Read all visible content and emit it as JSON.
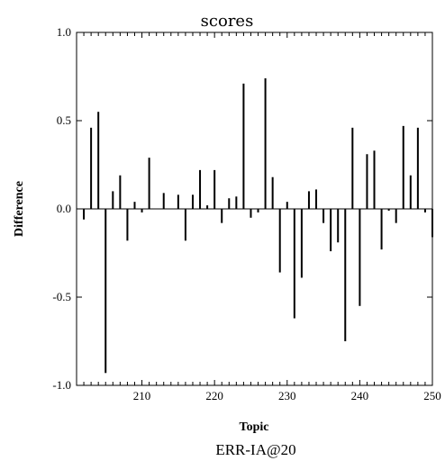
{
  "chart_data": {
    "type": "bar",
    "title": "scores",
    "xlabel": "Topic",
    "ylabel": "Difference",
    "caption": "ERR-IA@20",
    "xlim": [
      201,
      250
    ],
    "ylim": [
      -1.0,
      1.0
    ],
    "x_ticks": [
      210,
      220,
      230,
      240,
      250
    ],
    "y_ticks": [
      -1.0,
      -0.5,
      0.0,
      0.5,
      1.0
    ],
    "y_tick_labels": [
      "-1.0",
      "-0.5",
      "0.0",
      "0.5",
      "1.0"
    ],
    "grid": false,
    "x": [
      202,
      203,
      204,
      205,
      206,
      207,
      208,
      209,
      210,
      211,
      212,
      213,
      214,
      215,
      216,
      217,
      218,
      219,
      220,
      221,
      222,
      223,
      224,
      225,
      226,
      227,
      228,
      229,
      230,
      231,
      232,
      233,
      234,
      235,
      236,
      237,
      238,
      239,
      240,
      241,
      242,
      243,
      244,
      245,
      246,
      247,
      248,
      249,
      250
    ],
    "values": [
      -0.06,
      0.46,
      0.55,
      -0.93,
      0.1,
      0.19,
      -0.18,
      0.04,
      -0.02,
      0.29,
      0.0,
      0.09,
      0.0,
      0.08,
      -0.18,
      0.08,
      0.22,
      0.02,
      0.22,
      -0.08,
      0.06,
      0.07,
      0.71,
      -0.05,
      -0.02,
      0.74,
      0.18,
      -0.36,
      0.04,
      -0.62,
      -0.39,
      0.1,
      0.11,
      -0.08,
      -0.24,
      -0.19,
      -0.75,
      0.46,
      -0.55,
      0.31,
      0.33,
      -0.23,
      -0.01,
      -0.08,
      0.47,
      0.19,
      0.46,
      -0.02,
      -0.16
    ]
  }
}
